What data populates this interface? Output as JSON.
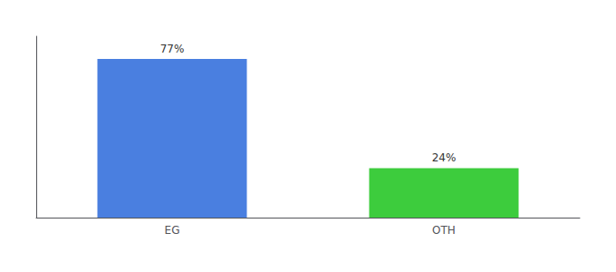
{
  "chart_data": {
    "type": "bar",
    "categories": [
      "EG",
      "OTH"
    ],
    "values": [
      77,
      24
    ],
    "colors": [
      "#4a7fe0",
      "#3dcc3d"
    ],
    "value_labels": [
      "77%",
      "24%"
    ],
    "data_labels": true,
    "ylim": [
      0,
      88
    ],
    "grid": false,
    "tick_labels": "x"
  }
}
